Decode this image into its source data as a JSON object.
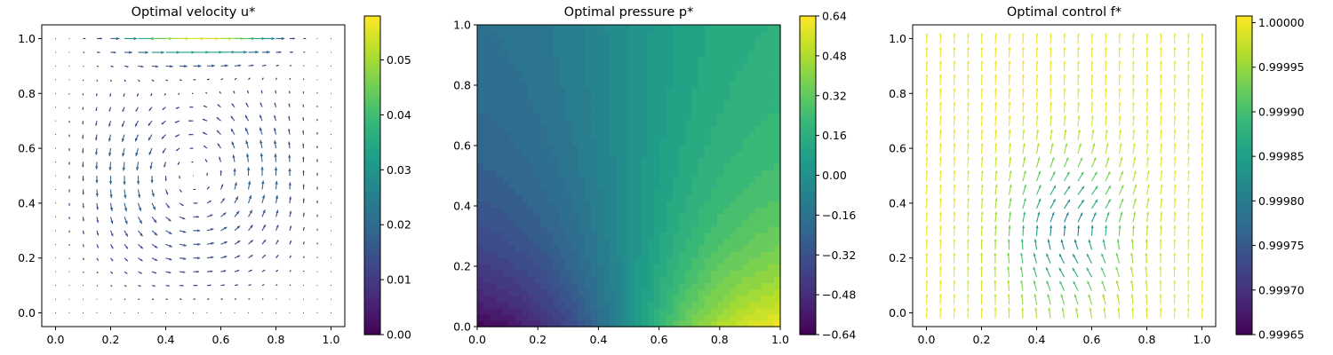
{
  "chart_data": [
    {
      "type": "quiver",
      "title": "Optimal velocity u*",
      "xlabel": "",
      "ylabel": "",
      "xlim": [
        -0.05,
        1.05
      ],
      "ylim": [
        -0.05,
        1.05
      ],
      "xticks": [
        0.0,
        0.2,
        0.4,
        0.6,
        0.8,
        1.0
      ],
      "yticks": [
        0.0,
        0.2,
        0.4,
        0.6,
        0.8,
        1.0
      ],
      "xtick_labels": [
        "0.0",
        "0.2",
        "0.4",
        "0.6",
        "0.8",
        "1.0"
      ],
      "ytick_labels": [
        "0.0",
        "0.2",
        "0.4",
        "0.6",
        "0.8",
        "1.0"
      ],
      "grid": false,
      "field": "lid-driven cavity vortex, strongest flow along top lid (y=1) moving in +x, clockwise circulation centered near (0.5, 0.6)",
      "grid_points": 21,
      "magnitude_range": [
        0.0,
        0.057
      ],
      "colorbar": {
        "colormap": "viridis",
        "range": [
          0.0,
          0.058
        ],
        "ticks": [
          0.0,
          0.01,
          0.02,
          0.03,
          0.04,
          0.05
        ],
        "tick_labels": [
          "0.00",
          "0.01",
          "0.02",
          "0.03",
          "0.04",
          "0.05"
        ]
      }
    },
    {
      "type": "contourf",
      "title": "Optimal pressure p*",
      "xlabel": "",
      "ylabel": "",
      "xlim": [
        0.0,
        1.0
      ],
      "ylim": [
        0.0,
        1.0
      ],
      "xticks": [
        0.0,
        0.2,
        0.4,
        0.6,
        0.8,
        1.0
      ],
      "yticks": [
        0.0,
        0.2,
        0.4,
        0.6,
        0.8,
        1.0
      ],
      "xtick_labels": [
        "0.0",
        "0.2",
        "0.4",
        "0.6",
        "0.8",
        "1.0"
      ],
      "ytick_labels": [
        "0.0",
        "0.2",
        "0.4",
        "0.6",
        "0.8",
        "1.0"
      ],
      "grid": false,
      "field": "pressure low at bottom-left corner (-0.64), high at bottom-right corner (+0.64), near zero along top and center",
      "value_range": [
        -0.64,
        0.64
      ],
      "levels": 32,
      "colorbar": {
        "colormap": "viridis",
        "range": [
          -0.64,
          0.64
        ],
        "ticks": [
          -0.64,
          -0.48,
          -0.32,
          -0.16,
          0.0,
          0.16,
          0.32,
          0.48,
          0.64
        ],
        "tick_labels": [
          "−0.64",
          "−0.48",
          "−0.32",
          "−0.16",
          "0.00",
          "0.16",
          "0.32",
          "0.48",
          "0.64"
        ]
      }
    },
    {
      "type": "quiver",
      "title": "Optimal control f*",
      "xlabel": "",
      "ylabel": "",
      "xlim": [
        -0.05,
        1.05
      ],
      "ylim": [
        -0.05,
        1.05
      ],
      "xticks": [
        0.0,
        0.2,
        0.4,
        0.6,
        0.8,
        1.0
      ],
      "yticks": [
        0.0,
        0.2,
        0.4,
        0.6,
        0.8,
        1.0
      ],
      "xtick_labels": [
        "0.0",
        "0.2",
        "0.4",
        "0.6",
        "0.8",
        "1.0"
      ],
      "ytick_labels": [
        "0.0",
        "0.2",
        "0.4",
        "0.6",
        "0.8",
        "1.0"
      ],
      "grid": false,
      "field": "control vectors nearly uniform (pointing mostly upward), slight deviation pattern in lower-right region around (0.55, 0.3)",
      "grid_points": 21,
      "magnitude_range": [
        0.99965,
        1.0
      ],
      "colorbar": {
        "colormap": "viridis",
        "range": [
          0.99965,
          1.0000075
        ],
        "ticks": [
          0.99965,
          0.9997,
          0.99975,
          0.9998,
          0.99985,
          0.9999,
          0.99995,
          1.0
        ],
        "tick_labels": [
          "0.99965",
          "0.99970",
          "0.99975",
          "0.99980",
          "0.99985",
          "0.99990",
          "0.99995",
          "1.00000"
        ]
      }
    }
  ],
  "colors": {
    "viridis": [
      "#440154",
      "#482878",
      "#3e4989",
      "#31688e",
      "#26828e",
      "#1f9e89",
      "#35b779",
      "#6ece58",
      "#b5de2b",
      "#fde725"
    ]
  }
}
